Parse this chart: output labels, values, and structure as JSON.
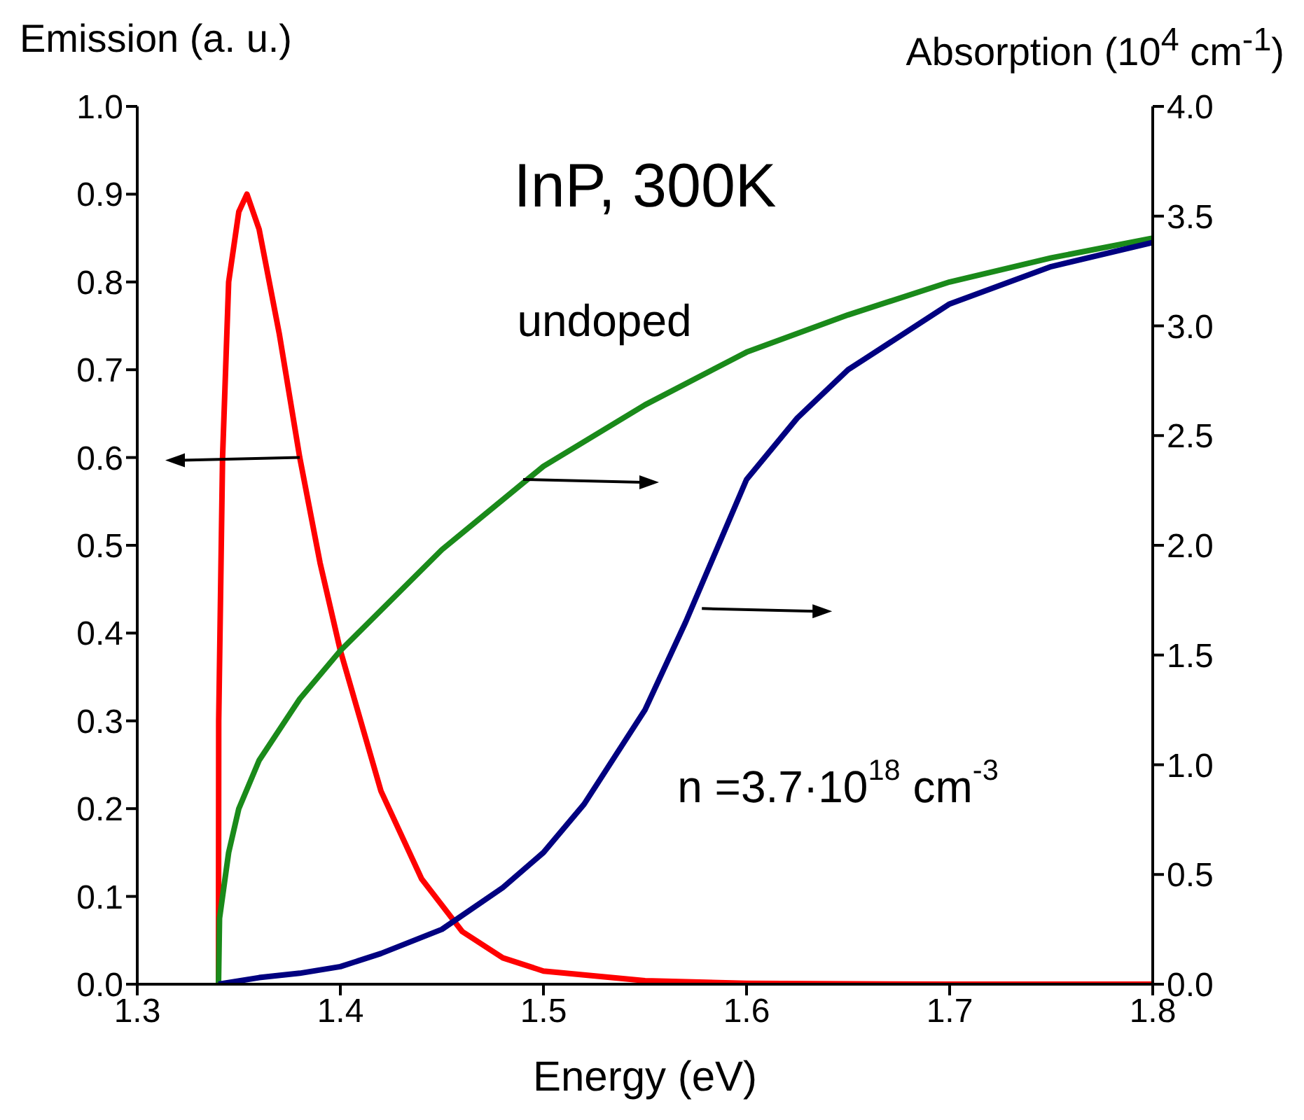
{
  "chart_data": {
    "type": "line",
    "xlabel": "Energy (eV)",
    "ylabel": "Emission (a. u.)",
    "y2label": "Absorption (10$^{4}$ cm$^{-1}$)",
    "annotations": [
      "InP, 300K",
      "undoped",
      "n =3.7·10$^{18}$ cm$^{-3}$"
    ],
    "series": [
      {
        "color": "#ff0000",
        "x": [
          1.34,
          1.3401,
          1.342,
          1.345,
          1.35,
          1.354,
          1.36,
          1.37,
          1.38,
          1.39,
          1.4,
          1.42,
          1.44,
          1.46,
          1.48,
          1.5,
          1.55,
          1.6,
          1.7,
          1.8
        ],
        "values": [
          0,
          0.3,
          0.6,
          0.8,
          0.88,
          0.9,
          0.86,
          0.74,
          0.6,
          0.48,
          0.38,
          0.22,
          0.12,
          0.06,
          0.03,
          0.015,
          0.004,
          0.001,
          0,
          0
        ]
      },
      {
        "color": "#1a8a1a",
        "axis": "y2",
        "x": [
          1.34,
          1.3405,
          1.345,
          1.35,
          1.36,
          1.38,
          1.4,
          1.45,
          1.5,
          1.55,
          1.6,
          1.65,
          1.7,
          1.75,
          1.8
        ],
        "values": [
          0,
          0.3,
          0.6,
          0.8,
          1.02,
          1.3,
          1.52,
          1.98,
          2.36,
          2.64,
          2.88,
          3.05,
          3.2,
          3.31,
          3.4
        ]
      },
      {
        "color": "#000080",
        "axis": "y2",
        "x": [
          1.34,
          1.36,
          1.38,
          1.4,
          1.42,
          1.45,
          1.48,
          1.5,
          1.52,
          1.55,
          1.57,
          1.6,
          1.625,
          1.65,
          1.7,
          1.75,
          1.8
        ],
        "values": [
          0,
          0.03,
          0.05,
          0.08,
          0.14,
          0.25,
          0.44,
          0.6,
          0.82,
          1.25,
          1.65,
          2.3,
          2.58,
          2.8,
          3.1,
          3.27,
          3.38
        ]
      }
    ],
    "xlim": [
      1.3,
      1.8
    ],
    "xticks": [
      1.3,
      1.4,
      1.5,
      1.6,
      1.7,
      1.8
    ],
    "ylim": [
      0,
      1
    ],
    "yticks": [
      {
        "value": 0,
        "label": "0.0"
      },
      0.1,
      0.2,
      0.3,
      0.4,
      0.5,
      0.6,
      0.7,
      0.8,
      0.9,
      {
        "value": 1,
        "label": "1.0"
      }
    ],
    "y2lim": [
      0,
      4
    ],
    "y2ticks": [
      {
        "value": 0,
        "label": "0.0"
      },
      0.5,
      {
        "value": 1,
        "label": "1.0"
      },
      1.5,
      {
        "value": 2,
        "label": "2.0"
      },
      2.5,
      {
        "value": 3,
        "label": "3.0"
      },
      3.5,
      {
        "value": 4,
        "label": "4.0"
      }
    ],
    "grid": false,
    "legend": false,
    "marker": "none",
    "line_style": "solid"
  }
}
